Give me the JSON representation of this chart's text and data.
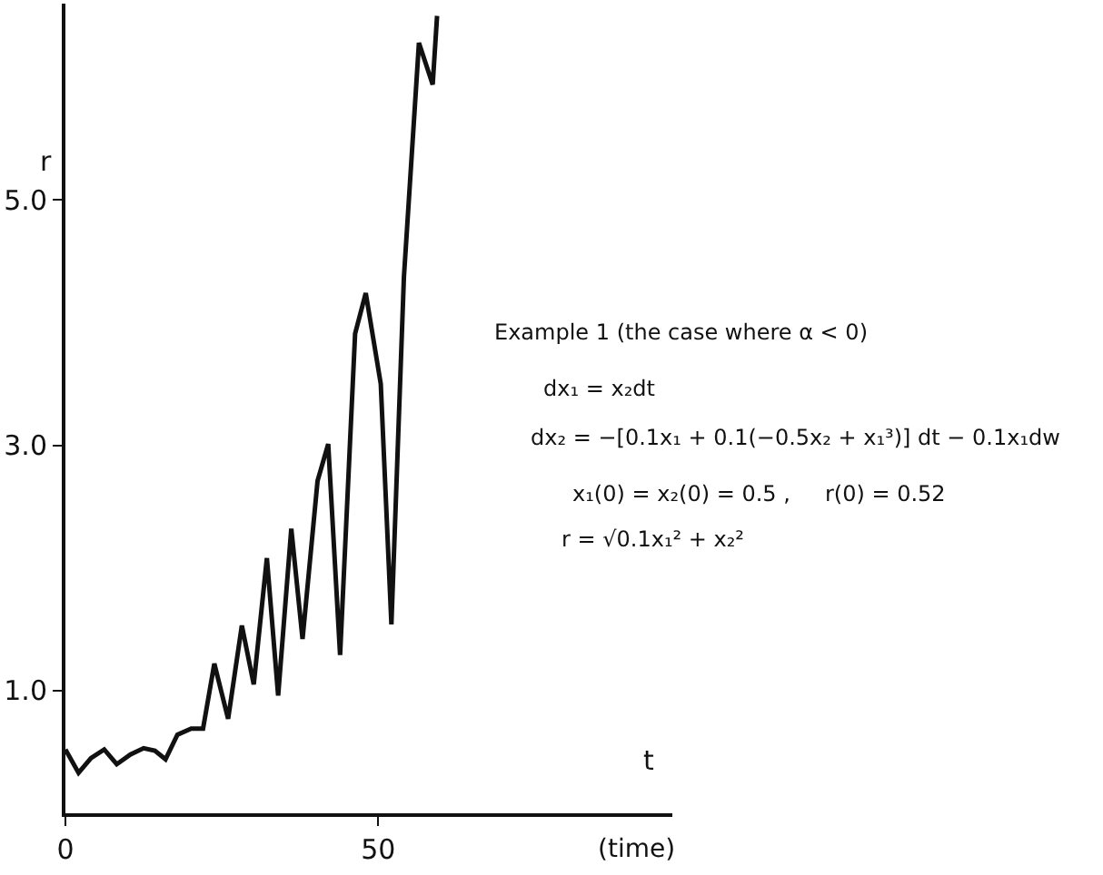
{
  "chart_data": {
    "type": "line",
    "xlabel": "t",
    "ylabel": "r",
    "annotations": [
      "(time)",
      "Example 1 (the case where α < 0)",
      "dx₁ = x₂dt",
      "dx₂ = −[0.1x₁ + 0.1(−0.5x₂ + x₁³)] dt − 0.1x₁dw",
      "x₁(0) = x₂(0) = 0.5 ,     r(0) = 0.52",
      "r = √0.1x₁² + x₂²"
    ],
    "x": [
      0,
      2.1,
      4.1,
      6.2,
      8.2,
      10.4,
      12.5,
      14.3,
      16.0,
      17.9,
      20.1,
      22.0,
      23.8,
      26.0,
      28.2,
      30.1,
      32.2,
      34.0,
      36.1,
      37.9,
      40.3,
      42.0,
      43.9,
      46.3,
      48.0,
      50.4,
      52.1,
      54.1,
      56.5,
      58.7,
      59.4
    ],
    "series": [
      {
        "color": "#111111",
        "values": [
          0.52,
          0.33,
          0.45,
          0.52,
          0.4,
          0.48,
          0.53,
          0.51,
          0.44,
          0.64,
          0.69,
          0.69,
          1.22,
          0.77,
          1.53,
          1.05,
          2.08,
          0.96,
          2.32,
          1.42,
          2.71,
          3.01,
          1.29,
          3.91,
          4.24,
          3.5,
          1.54,
          4.37,
          6.28,
          5.94,
          6.5
        ]
      }
    ],
    "xlim": [
      0,
      97
    ],
    "ylim": [
      0,
      6.6
    ],
    "xticks": [
      0,
      50
    ],
    "yticks": [
      {
        "value": 1,
        "label": "1.0"
      },
      {
        "value": 3,
        "label": "3.0"
      },
      {
        "value": 5,
        "label": "5.0"
      }
    ],
    "legend": false,
    "marker": "none",
    "line_style": "solid"
  }
}
